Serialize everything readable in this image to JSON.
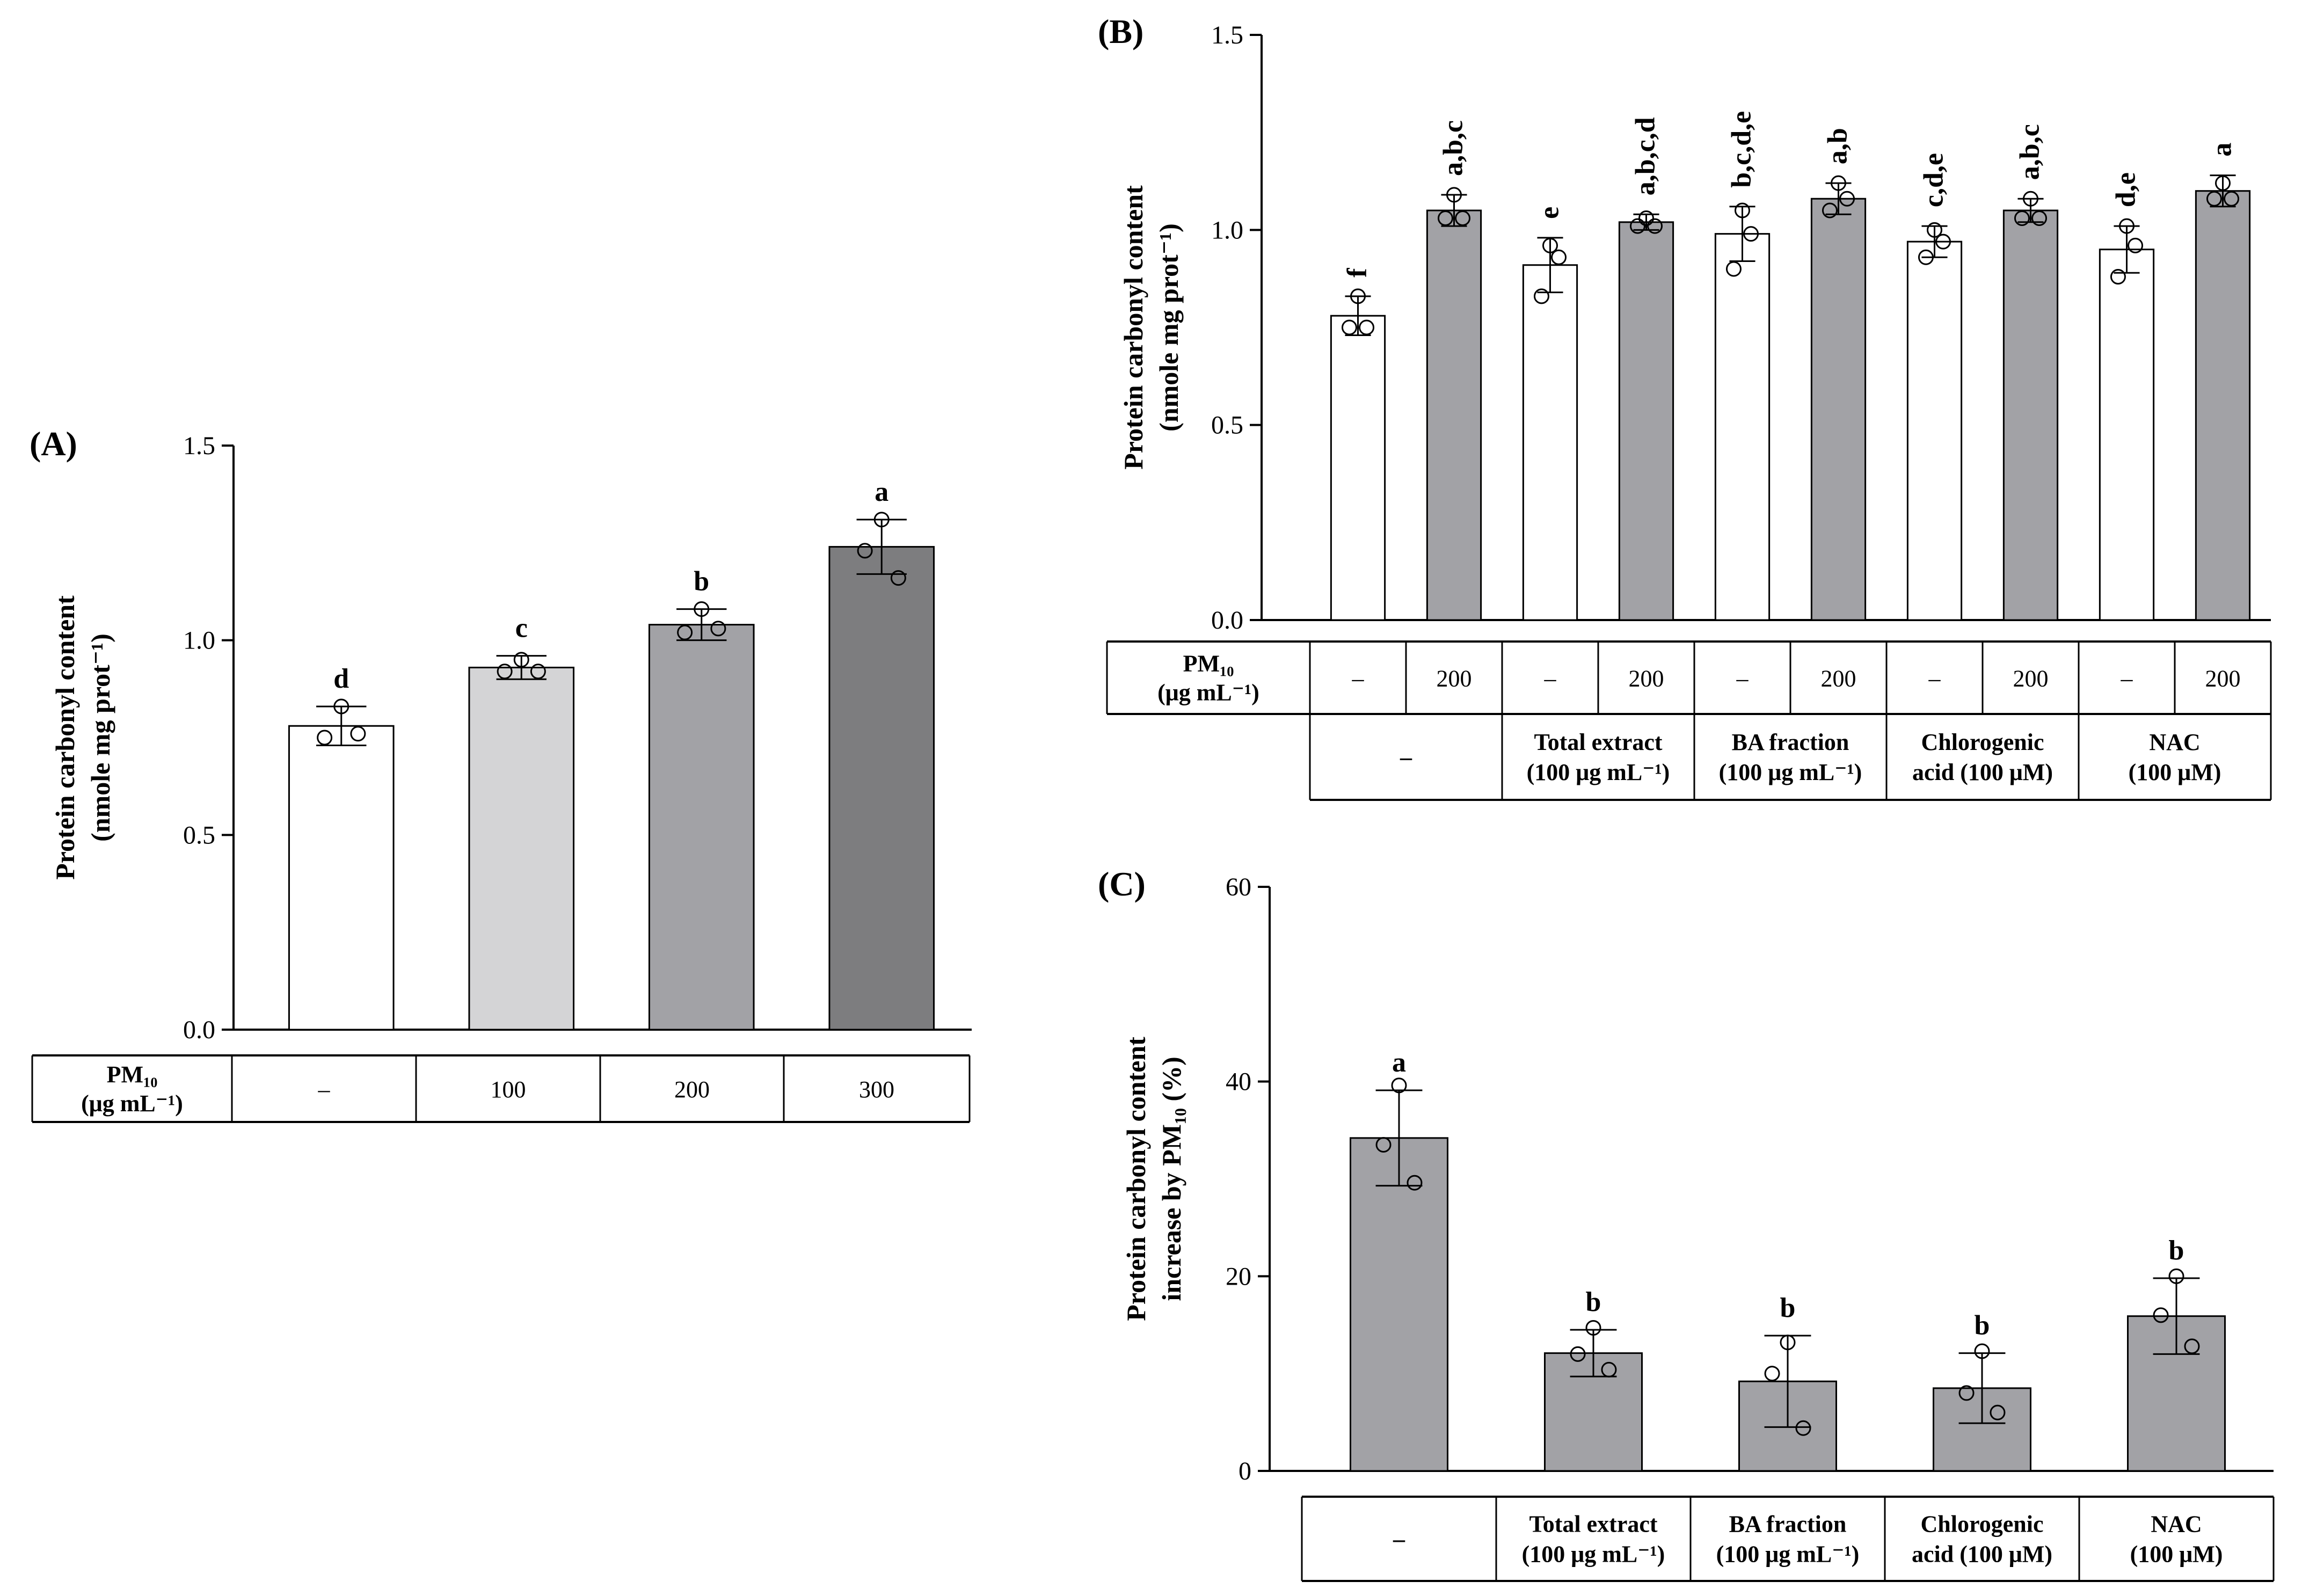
{
  "chart_data": [
    {
      "panel": "(A)",
      "type": "bar",
      "ylabel": "Protein carbonyl content (nmole mg prot⁻¹)",
      "ylabel_lines": [
        "Protein carbonyl content",
        "(nmole mg prot⁻¹)"
      ],
      "ylim": [
        0,
        1.5
      ],
      "yticks": [
        "0.0",
        "0.5",
        "1.0",
        "1.5"
      ],
      "categories": [
        "–",
        "100",
        "200",
        "300"
      ],
      "values": [
        0.78,
        0.93,
        1.04,
        1.24
      ],
      "errors": [
        0.05,
        0.03,
        0.04,
        0.07
      ],
      "points": [
        [
          0.83,
          0.75,
          0.76
        ],
        [
          0.95,
          0.92,
          0.92
        ],
        [
          1.08,
          1.02,
          1.03
        ],
        [
          1.31,
          1.23,
          1.16
        ]
      ],
      "bar_colors": [
        "#ffffff",
        "#d4d4d6",
        "#a2a2a6",
        "#7d7d7f"
      ],
      "significance": [
        "d",
        "c",
        "b",
        "a"
      ],
      "row_header": [
        "PM₁₀",
        "(μg mL⁻¹)"
      ]
    },
    {
      "panel": "(B)",
      "type": "bar",
      "ylabel": "Protein carbonyl content (nmole mg prot⁻¹)",
      "ylabel_lines": [
        "Protein carbonyl content",
        "(nmole mg prot⁻¹)"
      ],
      "ylim": [
        0,
        1.5
      ],
      "yticks": [
        "0.0",
        "0.5",
        "1.0",
        "1.5"
      ],
      "pm_row": [
        "–",
        "200",
        "–",
        "200",
        "–",
        "200",
        "–",
        "200",
        "–",
        "200"
      ],
      "values": [
        0.78,
        1.05,
        0.91,
        1.02,
        0.99,
        1.08,
        0.97,
        1.05,
        0.95,
        1.1
      ],
      "errors": [
        0.05,
        0.04,
        0.07,
        0.02,
        0.07,
        0.04,
        0.04,
        0.03,
        0.06,
        0.04
      ],
      "points": [
        [
          0.83,
          0.75,
          0.75
        ],
        [
          1.09,
          1.03,
          1.03
        ],
        [
          0.96,
          0.83,
          0.93
        ],
        [
          1.03,
          1.01,
          1.01
        ],
        [
          1.05,
          0.9,
          0.99
        ],
        [
          1.12,
          1.05,
          1.08
        ],
        [
          1.0,
          0.93,
          0.97
        ],
        [
          1.08,
          1.03,
          1.03
        ],
        [
          1.01,
          0.88,
          0.96
        ],
        [
          1.12,
          1.08,
          1.08
        ]
      ],
      "bar_colors": [
        "#ffffff",
        "#a2a2a6",
        "#ffffff",
        "#a2a2a6",
        "#ffffff",
        "#a2a2a6",
        "#ffffff",
        "#a2a2a6",
        "#ffffff",
        "#a2a2a6"
      ],
      "significance": [
        "f",
        "a,b,c",
        "e",
        "a,b,c,d",
        "b,c,d,e",
        "a,b",
        "c,d,e",
        "a,b,c",
        "d,e",
        "a"
      ],
      "row_header": [
        "PM₁₀",
        "(μg mL⁻¹)"
      ],
      "treatments": [
        {
          "lines": [
            "–"
          ]
        },
        {
          "lines": [
            "Total extract",
            "(100 μg mL⁻¹)"
          ]
        },
        {
          "lines": [
            "BA fraction",
            "(100 μg mL⁻¹)"
          ]
        },
        {
          "lines": [
            "Chlorogenic",
            "acid (100 μM)"
          ]
        },
        {
          "lines": [
            "NAC",
            "(100 μM)"
          ]
        }
      ]
    },
    {
      "panel": "(C)",
      "type": "bar",
      "ylabel": "Protein carbonyl content increase by PM10 (%)",
      "ylabel_lines": [
        "Protein carbonyl content",
        "increase by PM₁₀ (%)"
      ],
      "ylim": [
        0,
        60
      ],
      "yticks": [
        "0",
        "20",
        "40",
        "60"
      ],
      "categories": [
        {
          "lines": [
            "–"
          ]
        },
        {
          "lines": [
            "Total extract",
            "(100 μg mL⁻¹)"
          ]
        },
        {
          "lines": [
            "BA fraction",
            "(100 μg mL⁻¹)"
          ]
        },
        {
          "lines": [
            "Chlorogenic",
            "acid (100 μM)"
          ]
        },
        {
          "lines": [
            "NAC",
            "(100 μM)"
          ]
        }
      ],
      "values": [
        34.2,
        12.1,
        9.2,
        8.5,
        15.9
      ],
      "errors": [
        4.9,
        2.4,
        4.7,
        3.6,
        3.9
      ],
      "points": [
        [
          39.6,
          33.5,
          29.6
        ],
        [
          14.7,
          12.0,
          10.4
        ],
        [
          13.2,
          10.0,
          4.4
        ],
        [
          12.3,
          8.0,
          6.0
        ],
        [
          20.0,
          16.0,
          12.8
        ]
      ],
      "bar_colors": [
        "#a2a2a6",
        "#a2a2a6",
        "#a2a2a6",
        "#a2a2a6",
        "#a2a2a6"
      ],
      "significance": [
        "a",
        "b",
        "b",
        "b",
        "b"
      ]
    }
  ]
}
